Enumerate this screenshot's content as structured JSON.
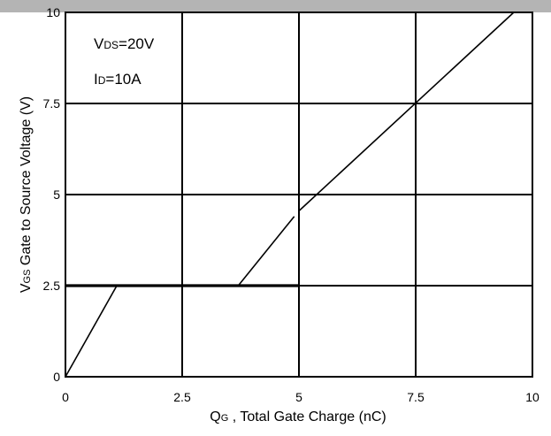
{
  "chart_data": {
    "type": "line",
    "title": "",
    "xlabel": {
      "symbol": "Q",
      "sub": "G",
      "rest": " , Total Gate Charge (nC)"
    },
    "ylabel": {
      "symbol": "V",
      "sub": "GS",
      "rest": " Gate to Source Voltage (V)"
    },
    "xlim": [
      0,
      10
    ],
    "ylim": [
      0,
      10
    ],
    "grid": true,
    "x_ticks": [
      0,
      2.5,
      5,
      7.5,
      10
    ],
    "x_tick_labels": [
      "0",
      "2.5",
      "5",
      "7.5",
      "10"
    ],
    "y_ticks": [
      0,
      2.5,
      5,
      7.5,
      10
    ],
    "y_tick_labels": [
      "0",
      "2.5",
      "5",
      "7.5",
      "10"
    ],
    "annotations": [
      {
        "symbol": "V",
        "sub": "DS",
        "rest": "=20V"
      },
      {
        "symbol": "I",
        "sub": "D",
        "rest": "=10A"
      }
    ],
    "series": [
      {
        "segments": [
          [
            [
              0,
              0
            ],
            [
              1.1,
              2.5
            ]
          ],
          [
            [
              3.7,
              2.5
            ],
            [
              4.9,
              4.4
            ]
          ],
          [
            [
              5.0,
              4.55
            ],
            [
              9.6,
              10.0
            ]
          ]
        ]
      },
      {
        "segments": [
          [
            [
              0,
              2.5
            ],
            [
              5.0,
              2.5
            ]
          ]
        ]
      }
    ]
  }
}
